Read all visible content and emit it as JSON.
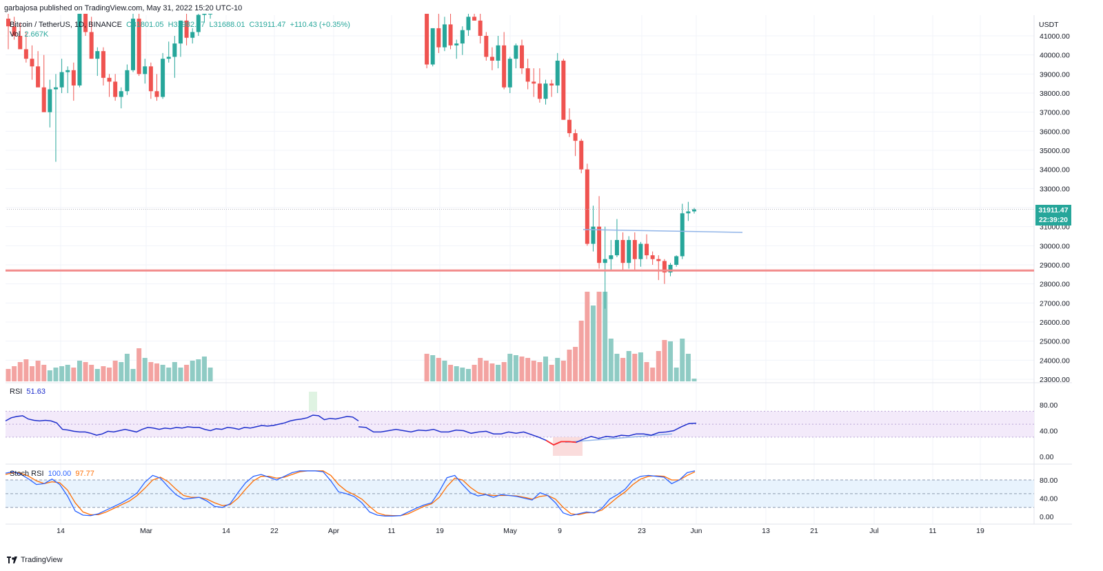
{
  "header": {
    "publisher_line": "garbajosa published on TradingView.com, May 31, 2022 15:20 UTC-10"
  },
  "legend": {
    "symbol": "Bitcoin / TetherUS, 1D, BINANCE",
    "open": "O31801.05",
    "high": "H31982.97",
    "low": "L31688.01",
    "close": "C31911.47",
    "change": "+110.43 (+0.35%)",
    "vol_label": "Vol",
    "vol_value": "2.667K"
  },
  "rsi": {
    "label": "RSI",
    "value": "51.63"
  },
  "stoch": {
    "label": "Stoch RSI",
    "k": "100.00",
    "d": "97.77"
  },
  "price_axis": {
    "currency": "USDT",
    "ticks": [
      "41000.00",
      "40000.00",
      "39000.00",
      "38000.00",
      "37000.00",
      "36000.00",
      "35000.00",
      "34000.00",
      "33000.00",
      "32000.00",
      "31000.00",
      "30000.00",
      "29000.00",
      "28000.00",
      "27000.00",
      "26000.00",
      "25000.00",
      "24000.00",
      "23000.00"
    ]
  },
  "last_price": {
    "price": "31911.47",
    "countdown": "22:39:20"
  },
  "rsi_axis": [
    "80.00",
    "40.00",
    "0.00"
  ],
  "stoch_axis": [
    "80.00",
    "40.00",
    "0.00"
  ],
  "date_axis": [
    "14",
    "Mar",
    "14",
    "22",
    "Apr",
    "11",
    "19",
    "May",
    "9",
    "23",
    "Jun",
    "13",
    "21",
    "Jul",
    "11",
    "19"
  ],
  "footer": {
    "brand": "TradingView"
  },
  "colors": {
    "up": "#26a69a",
    "down": "#ef5350",
    "up_vol": "#8fcbc4",
    "down_vol": "#f3a3a1",
    "rsi": "#1b2ccc",
    "stoch_k": "#2962ff",
    "stoch_d": "#ff6d00",
    "support": "#f28b8b",
    "trend": "#90b4e8"
  },
  "chart_data": {
    "type": "candlestick",
    "title": "Bitcoin / TetherUS, 1D, BINANCE",
    "ylim": [
      23000,
      42000
    ],
    "candles_visible_tail": [
      {
        "o": 30300,
        "h": 30700,
        "l": 28700,
        "c": 29100
      },
      {
        "o": 29100,
        "h": 29600,
        "l": 28700,
        "c": 29500
      },
      {
        "o": 29500,
        "h": 31400,
        "l": 29400,
        "c": 30300
      },
      {
        "o": 30300,
        "h": 30700,
        "l": 28800,
        "c": 29300
      },
      {
        "o": 29300,
        "h": 30200,
        "l": 28900,
        "c": 30100
      },
      {
        "o": 30100,
        "h": 30600,
        "l": 29300,
        "c": 29500
      },
      {
        "o": 29500,
        "h": 29700,
        "l": 29000,
        "c": 29300
      },
      {
        "o": 29300,
        "h": 29500,
        "l": 28200,
        "c": 29200
      },
      {
        "o": 29200,
        "h": 29300,
        "l": 28000,
        "c": 28600
      },
      {
        "o": 28600,
        "h": 29100,
        "l": 28400,
        "c": 29000
      },
      {
        "o": 29000,
        "h": 29500,
        "l": 28900,
        "c": 29450
      },
      {
        "o": 29450,
        "h": 32200,
        "l": 29300,
        "c": 31700
      },
      {
        "o": 31700,
        "h": 32300,
        "l": 31300,
        "c": 31800
      },
      {
        "o": 31801.05,
        "h": 31982.97,
        "l": 31688.01,
        "c": 31911.47
      }
    ],
    "support_level": 28700,
    "resistance_trendline": 30800,
    "rsi_last": 51.63,
    "stoch_rsi_k": 100.0,
    "stoch_rsi_d": 97.77
  }
}
